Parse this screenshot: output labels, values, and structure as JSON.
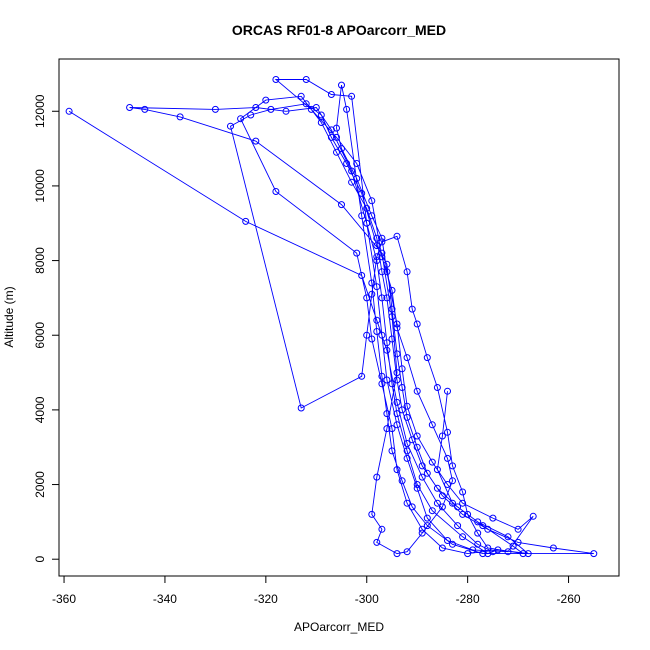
{
  "chart_data": {
    "type": "line",
    "title": "ORCAS RF01-8 APOarcorr_MED",
    "xlabel": "APOarcorr_MED",
    "ylabel": "Altitude (m)",
    "xlim": [
      -361,
      -250
    ],
    "ylim": [
      -450,
      13400
    ],
    "xticks": [
      -360,
      -340,
      -320,
      -300,
      -280,
      -260
    ],
    "yticks": [
      0,
      2000,
      4000,
      6000,
      8000,
      10000,
      12000
    ],
    "grid": false,
    "legend": "none",
    "colors": {
      "series": "#0000ff",
      "axis": "#000000",
      "background": "#ffffff"
    },
    "series": [
      {
        "points": [
          [
            -359,
            12000
          ],
          [
            -324,
            9050
          ],
          [
            -301,
            7600
          ],
          [
            -298,
            6400
          ],
          [
            -296,
            5600
          ],
          [
            -294,
            4200
          ],
          [
            -292,
            3100
          ],
          [
            -289,
            2200
          ],
          [
            -286,
            1500
          ],
          [
            -282,
            900
          ],
          [
            -278,
            400
          ],
          [
            -275,
            200
          ],
          [
            -276,
            150
          ],
          [
            -281,
            600
          ],
          [
            -287,
            1300
          ],
          [
            -290,
            2000
          ],
          [
            -292,
            2900
          ],
          [
            -294,
            3900
          ],
          [
            -295,
            4700
          ],
          [
            -296,
            5800
          ],
          [
            -297,
            7000
          ],
          [
            -298,
            8000
          ],
          [
            -300,
            9000
          ],
          [
            -303,
            10400
          ],
          [
            -307,
            11500
          ],
          [
            -310,
            12100
          ],
          [
            -316,
            12000
          ],
          [
            -322,
            12100
          ],
          [
            -330,
            12050
          ],
          [
            -347,
            12100
          ],
          [
            -344,
            12050
          ],
          [
            -337,
            11850
          ],
          [
            -322,
            11200
          ],
          [
            -305,
            9500
          ],
          [
            -297,
            8200
          ],
          [
            -295,
            6500
          ],
          [
            -294,
            5000
          ],
          [
            -296,
            3500
          ],
          [
            -298,
            2200
          ],
          [
            -299,
            1200
          ],
          [
            -297,
            800
          ],
          [
            -298,
            450
          ],
          [
            -294,
            150
          ],
          [
            -292,
            200
          ],
          [
            -289,
            700
          ],
          [
            -285,
            1400
          ],
          [
            -283,
            2100
          ],
          [
            -284,
            2700
          ],
          [
            -287,
            3600
          ],
          [
            -290,
            4500
          ],
          [
            -292,
            5400
          ],
          [
            -294,
            6200
          ],
          [
            -295,
            7200
          ],
          [
            -297,
            8100
          ],
          [
            -299,
            9600
          ],
          [
            -302,
            10600
          ],
          [
            -306,
            11300
          ],
          [
            -311,
            12050
          ],
          [
            -318,
            12850
          ],
          [
            -312,
            12850
          ],
          [
            -307,
            12450
          ],
          [
            -303,
            12400
          ],
          [
            -300,
            9000
          ],
          [
            -298,
            7300
          ],
          [
            -297,
            6000
          ],
          [
            -296,
            4800
          ],
          [
            -294,
            3600
          ],
          [
            -292,
            2700
          ],
          [
            -290,
            1900
          ],
          [
            -288,
            1100
          ],
          [
            -284,
            500
          ],
          [
            -279,
            250
          ],
          [
            -272,
            200
          ],
          [
            -267,
            1150
          ],
          [
            -270,
            800
          ],
          [
            -275,
            1100
          ],
          [
            -281,
            1500
          ],
          [
            -284,
            2000
          ],
          [
            -287,
            2600
          ],
          [
            -290,
            3300
          ],
          [
            -292,
            4100
          ],
          [
            -293,
            5100
          ],
          [
            -294,
            6300
          ],
          [
            -296,
            7700
          ],
          [
            -297,
            8600
          ],
          [
            -299,
            9200
          ],
          [
            -302,
            10200
          ],
          [
            -305,
            11000
          ],
          [
            -306,
            11550
          ],
          [
            -305,
            12700
          ],
          [
            -304,
            12050
          ],
          [
            -301,
            9200
          ],
          [
            -299,
            7400
          ],
          [
            -298,
            6100
          ],
          [
            -297,
            4900
          ],
          [
            -296,
            3900
          ],
          [
            -295,
            2900
          ],
          [
            -293,
            2100
          ],
          [
            -291,
            1400
          ],
          [
            -288,
            900
          ],
          [
            -283,
            400
          ],
          [
            -277,
            150
          ],
          [
            -255,
            150
          ],
          [
            -263,
            300
          ],
          [
            -270,
            450
          ],
          [
            -276,
            800
          ],
          [
            -281,
            1200
          ],
          [
            -285,
            1700
          ],
          [
            -288,
            2300
          ],
          [
            -290,
            3000
          ],
          [
            -292,
            3800
          ],
          [
            -293,
            4600
          ],
          [
            -294,
            5500
          ],
          [
            -295,
            6700
          ],
          [
            -296,
            7900
          ],
          [
            -298,
            8400
          ],
          [
            -301,
            9800
          ],
          [
            -304,
            10600
          ],
          [
            -307,
            11300
          ],
          [
            -309,
            11900
          ],
          [
            -312,
            12200
          ],
          [
            -319,
            12050
          ],
          [
            -323,
            11900
          ],
          [
            -327,
            11600
          ],
          [
            -313,
            4050
          ],
          [
            -301,
            4900
          ],
          [
            -300,
            6000
          ],
          [
            -299,
            7100
          ],
          [
            -298,
            8100
          ],
          [
            -297,
            8500
          ],
          [
            -294,
            8650
          ],
          [
            -292,
            7700
          ],
          [
            -291,
            6700
          ],
          [
            -290,
            6300
          ],
          [
            -288,
            5400
          ],
          [
            -286,
            4600
          ],
          [
            -284,
            3400
          ],
          [
            -283,
            2500
          ],
          [
            -281,
            1800
          ],
          [
            -280,
            1200
          ],
          [
            -278,
            700
          ],
          [
            -276,
            300
          ],
          [
            -269,
            150
          ],
          [
            -271,
            350
          ],
          [
            -277,
            900
          ],
          [
            -282,
            1400
          ],
          [
            -286,
            1900
          ],
          [
            -289,
            2500
          ],
          [
            -291,
            3200
          ],
          [
            -293,
            4000
          ],
          [
            -294,
            4800
          ],
          [
            -295,
            5900
          ],
          [
            -296,
            7000
          ],
          [
            -297,
            7700
          ],
          [
            -298,
            8600
          ],
          [
            -300,
            9400
          ],
          [
            -303,
            10100
          ],
          [
            -306,
            10900
          ],
          [
            -309,
            11700
          ],
          [
            -313,
            12400
          ],
          [
            -320,
            12300
          ],
          [
            -325,
            11800
          ],
          [
            -318,
            9850
          ],
          [
            -302,
            8200
          ],
          [
            -300,
            7000
          ],
          [
            -299,
            5900
          ],
          [
            -297,
            4700
          ],
          [
            -295,
            3500
          ],
          [
            -294,
            2400
          ],
          [
            -292,
            1500
          ],
          [
            -289,
            800
          ],
          [
            -285,
            300
          ],
          [
            -280,
            150
          ],
          [
            -274,
            250
          ],
          [
            -268,
            150
          ],
          [
            -272,
            600
          ],
          [
            -278,
            1000
          ],
          [
            -283,
            1500
          ],
          [
            -286,
            2400
          ],
          [
            -285,
            3300
          ],
          [
            -284,
            4500
          ]
        ]
      }
    ]
  }
}
